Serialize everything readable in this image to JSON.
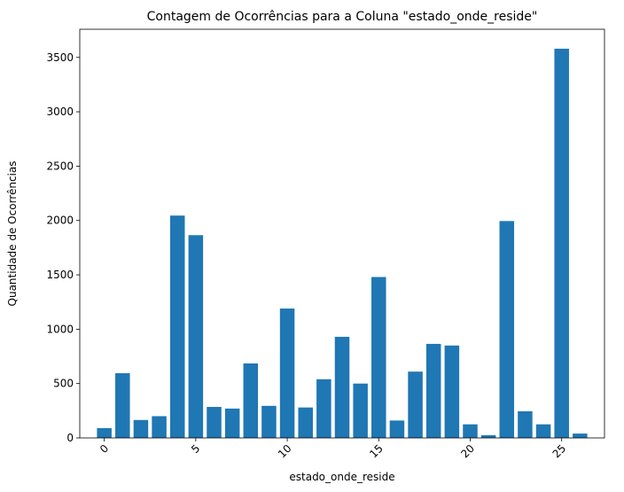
{
  "chart_data": {
    "type": "bar",
    "title": "Contagem de Ocorrências para a Coluna \"estado_onde_reside\"",
    "xlabel": "estado_onde_reside",
    "ylabel": "Quantidade de Ocorrências",
    "x": [
      0,
      1,
      2,
      3,
      4,
      5,
      6,
      7,
      8,
      9,
      10,
      11,
      12,
      13,
      14,
      15,
      16,
      17,
      18,
      19,
      20,
      21,
      22,
      23,
      24,
      25,
      26
    ],
    "values": [
      90,
      595,
      165,
      200,
      2045,
      1865,
      285,
      270,
      685,
      295,
      1190,
      280,
      540,
      930,
      500,
      1480,
      160,
      610,
      865,
      850,
      125,
      25,
      1995,
      245,
      125,
      3580,
      40
    ],
    "xlim": [
      -1.34,
      27.34
    ],
    "ylim": [
      0,
      3759
    ],
    "xticks": [
      0,
      5,
      10,
      15,
      20,
      25
    ],
    "yticks": [
      0,
      500,
      1000,
      1500,
      2000,
      2500,
      3000,
      3500
    ],
    "xtick_rotation": 45,
    "bar_color": "#1f77b4",
    "grid": false,
    "legend": false
  }
}
